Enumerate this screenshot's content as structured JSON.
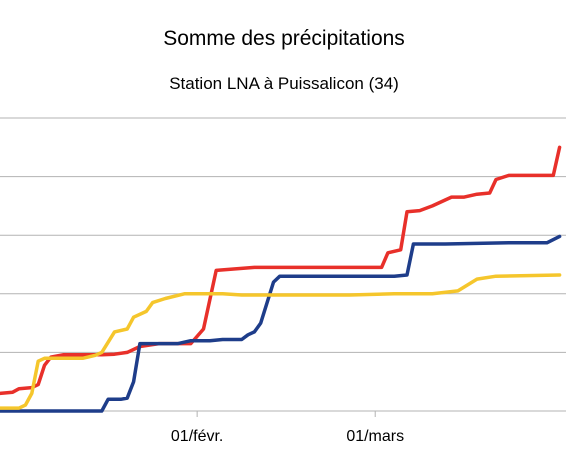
{
  "chart_data": {
    "type": "line",
    "title": "Somme des précipitations",
    "subtitle": "Station LNA à Puissalicon (34)",
    "xlabel": "",
    "ylabel": "",
    "x_tick_labels": [
      "01/févr.",
      "01/mars"
    ],
    "x_ticks_day": [
      31,
      59
    ],
    "xlim_day": [
      0,
      89
    ],
    "ylim": [
      0,
      5
    ],
    "y_gridlines": [
      0,
      1,
      2,
      3,
      4,
      5
    ],
    "grid": true,
    "legend": "none",
    "series": [
      {
        "color": "#e8302a",
        "points": [
          [
            0,
            0.3
          ],
          [
            2,
            0.32
          ],
          [
            3,
            0.38
          ],
          [
            5,
            0.4
          ],
          [
            6,
            0.45
          ],
          [
            7,
            0.78
          ],
          [
            8,
            0.92
          ],
          [
            10,
            0.96
          ],
          [
            16,
            0.96
          ],
          [
            18,
            0.97
          ],
          [
            20,
            1.0
          ],
          [
            22,
            1.1
          ],
          [
            25,
            1.15
          ],
          [
            30,
            1.15
          ],
          [
            32,
            1.4
          ],
          [
            34,
            2.4
          ],
          [
            40,
            2.45
          ],
          [
            46,
            2.45
          ],
          [
            60,
            2.45
          ],
          [
            61,
            2.7
          ],
          [
            63,
            2.75
          ],
          [
            64,
            3.4
          ],
          [
            66,
            3.42
          ],
          [
            68,
            3.5
          ],
          [
            70,
            3.6
          ],
          [
            71,
            3.65
          ],
          [
            73,
            3.65
          ],
          [
            75,
            3.7
          ],
          [
            77,
            3.72
          ],
          [
            78,
            3.95
          ],
          [
            80,
            4.02
          ],
          [
            87,
            4.02
          ],
          [
            88,
            4.5
          ]
        ]
      },
      {
        "color": "#1e3d8a",
        "points": [
          [
            0,
            0
          ],
          [
            4,
            0
          ],
          [
            8,
            0
          ],
          [
            15,
            0
          ],
          [
            16,
            0
          ],
          [
            17,
            0.2
          ],
          [
            19,
            0.2
          ],
          [
            20,
            0.22
          ],
          [
            21,
            0.5
          ],
          [
            22,
            1.15
          ],
          [
            26,
            1.15
          ],
          [
            28,
            1.15
          ],
          [
            30,
            1.2
          ],
          [
            33,
            1.2
          ],
          [
            35,
            1.22
          ],
          [
            38,
            1.22
          ],
          [
            39,
            1.3
          ],
          [
            40,
            1.35
          ],
          [
            41,
            1.5
          ],
          [
            43,
            2.2
          ],
          [
            44,
            2.3
          ],
          [
            50,
            2.3
          ],
          [
            60,
            2.3
          ],
          [
            62,
            2.3
          ],
          [
            64,
            2.32
          ],
          [
            65,
            2.85
          ],
          [
            70,
            2.85
          ],
          [
            75,
            2.86
          ],
          [
            80,
            2.87
          ],
          [
            86,
            2.87
          ],
          [
            88,
            2.98
          ]
        ]
      },
      {
        "color": "#f5c62c",
        "points": [
          [
            0,
            0.05
          ],
          [
            3,
            0.05
          ],
          [
            4,
            0.1
          ],
          [
            5,
            0.3
          ],
          [
            6,
            0.85
          ],
          [
            7,
            0.9
          ],
          [
            9,
            0.9
          ],
          [
            13,
            0.9
          ],
          [
            15,
            0.95
          ],
          [
            16,
            1.0
          ],
          [
            18,
            1.35
          ],
          [
            20,
            1.4
          ],
          [
            21,
            1.6
          ],
          [
            23,
            1.7
          ],
          [
            24,
            1.85
          ],
          [
            26,
            1.92
          ],
          [
            29,
            2.0
          ],
          [
            33,
            2.0
          ],
          [
            35,
            2.0
          ],
          [
            38,
            1.98
          ],
          [
            46,
            1.98
          ],
          [
            55,
            1.98
          ],
          [
            62,
            2.0
          ],
          [
            68,
            2.0
          ],
          [
            72,
            2.05
          ],
          [
            75,
            2.25
          ],
          [
            78,
            2.3
          ],
          [
            88,
            2.32
          ]
        ]
      }
    ]
  }
}
